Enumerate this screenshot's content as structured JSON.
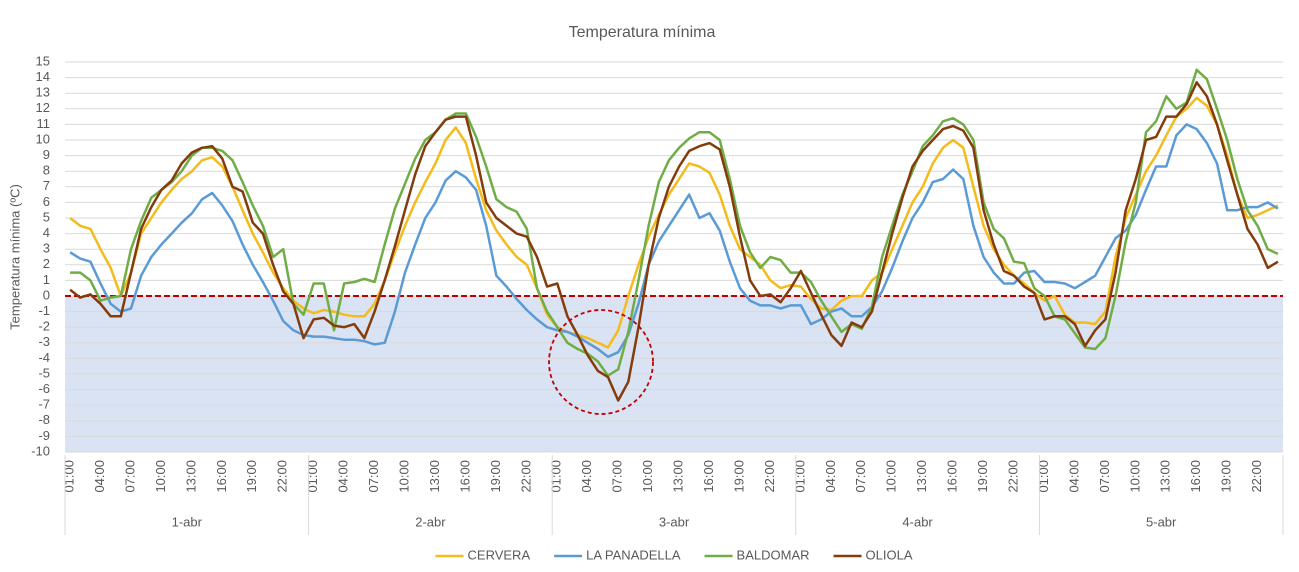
{
  "chart_data": {
    "type": "line",
    "title": "Temperatura mínima",
    "y_label": "Temperatura mínima (ºC)",
    "categories": [
      "01:00",
      null,
      null,
      "04:00",
      null,
      null,
      "07:00",
      null,
      null,
      "10:00",
      null,
      null,
      "13:00",
      null,
      null,
      "16:00",
      null,
      null,
      "19:00",
      null,
      null,
      "22:00",
      null,
      null,
      "01:00",
      null,
      null,
      "04:00",
      null,
      null,
      "07:00",
      null,
      null,
      "10:00",
      null,
      null,
      "13:00",
      null,
      null,
      "16:00",
      null,
      null,
      "19:00",
      null,
      null,
      "22:00",
      null,
      null,
      "01:00",
      null,
      null,
      "04:00",
      null,
      null,
      "07:00",
      null,
      null,
      "10:00",
      null,
      null,
      "13:00",
      null,
      null,
      "16:00",
      null,
      null,
      "19:00",
      null,
      null,
      "22:00",
      null,
      null,
      "01:00",
      null,
      null,
      "04:00",
      null,
      null,
      "07:00",
      null,
      null,
      "10:00",
      null,
      null,
      "13:00",
      null,
      null,
      "16:00",
      null,
      null,
      "19:00",
      null,
      null,
      "22:00",
      null,
      null,
      "01:00",
      null,
      null,
      "04:00",
      null,
      null,
      "07:00",
      null,
      null,
      "10:00",
      null,
      null,
      "13:00",
      null,
      null,
      "16:00",
      null,
      null,
      "19:00",
      null,
      null,
      "22:00",
      null,
      null
    ],
    "x_groups": [
      "1-abr",
      "2-abr",
      "3-abr",
      "4-abr",
      "5-abr"
    ],
    "series": [
      {
        "name": "CERVERA",
        "color": "#f4bb1c",
        "values": [
          5,
          4.5,
          4.3,
          3,
          1.8,
          0,
          1.5,
          4,
          5,
          6,
          6.8,
          7.5,
          8,
          8.7,
          8.9,
          8.3,
          7,
          5.5,
          4,
          2.8,
          1.5,
          0.5,
          -0.3,
          -0.8,
          -1.1,
          -0.9,
          -1,
          -1.2,
          -1.3,
          -1.3,
          -0.5,
          1,
          2.8,
          4.5,
          6,
          7.3,
          8.5,
          10,
          10.8,
          9.8,
          7.5,
          5.5,
          4.2,
          3.3,
          2.5,
          2,
          0.5,
          -1.2,
          -2,
          -2.3,
          -2.5,
          -2.7,
          -3,
          -3.3,
          -2.2,
          0,
          2,
          3.8,
          5.2,
          6.5,
          7.5,
          8.5,
          8.3,
          7.9,
          6.5,
          4.5,
          3,
          2.5,
          2,
          1,
          0.5,
          0.7,
          0.6,
          -0.2,
          -0.8,
          -0.9,
          -0.3,
          0,
          0,
          1,
          1.5,
          3,
          4.5,
          6,
          7,
          8.5,
          9.5,
          10,
          9.5,
          7,
          4.5,
          3,
          2,
          1.3,
          0.8,
          0.2,
          -0.3,
          0,
          -1.2,
          -1.7,
          -1.7,
          -1.8,
          -1,
          2.5,
          5,
          6.5,
          8,
          9,
          10.3,
          11.5,
          12,
          12.7,
          12.2,
          11,
          9,
          6.5,
          5,
          5.2,
          5.5,
          5.8
        ]
      },
      {
        "name": "LA PANADELLA",
        "color": "#5b9bd5",
        "values": [
          2.8,
          2.4,
          2.2,
          0.8,
          -0.5,
          -1,
          -0.8,
          1.3,
          2.5,
          3.3,
          4,
          4.7,
          5.3,
          6.2,
          6.6,
          5.8,
          4.8,
          3.3,
          2,
          0.9,
          -0.3,
          -1.6,
          -2.2,
          -2.5,
          -2.6,
          -2.6,
          -2.7,
          -2.8,
          -2.8,
          -2.9,
          -3.1,
          -3,
          -1,
          1.5,
          3.3,
          5,
          6,
          7.4,
          8,
          7.6,
          6.8,
          4.5,
          1.3,
          0.6,
          -0.2,
          -0.9,
          -1.5,
          -2,
          -2.2,
          -2.3,
          -2.6,
          -3,
          -3.4,
          -3.9,
          -3.6,
          -2.5,
          -0.5,
          2,
          3.5,
          4.5,
          5.5,
          6.5,
          5,
          5.3,
          4.2,
          2.2,
          0.5,
          -0.3,
          -0.6,
          -0.6,
          -0.8,
          -0.6,
          -0.6,
          -1.8,
          -1.5,
          -1,
          -0.8,
          -1.3,
          -1.3,
          -0.7,
          0.3,
          1.8,
          3.5,
          5,
          6,
          7.3,
          7.5,
          8.1,
          7.5,
          4.5,
          2.5,
          1.5,
          0.8,
          0.8,
          1.5,
          1.6,
          0.9,
          0.9,
          0.8,
          0.5,
          0.9,
          1.3,
          2.5,
          3.7,
          4.2,
          5.2,
          6.8,
          8.3,
          8.3,
          10.3,
          11,
          10.7,
          9.8,
          8.5,
          5.5,
          5.5,
          5.7,
          5.7,
          6,
          5.6
        ]
      },
      {
        "name": "BALDOMAR",
        "color": "#70ad47",
        "values": [
          1.5,
          1.5,
          1,
          -0.3,
          -0.1,
          0,
          3,
          4.8,
          6.3,
          6.8,
          7.3,
          8,
          9,
          9.5,
          9.5,
          9.3,
          8.7,
          7.3,
          5.8,
          4.5,
          2.5,
          3,
          -0.5,
          -1.2,
          0.8,
          0.8,
          -2.2,
          0.8,
          0.9,
          1.1,
          0.9,
          3.3,
          5.6,
          7.2,
          8.8,
          10,
          10.5,
          11.3,
          11.7,
          11.7,
          10.2,
          8.3,
          6.2,
          5.7,
          5.4,
          4.3,
          0.5,
          -1,
          -2,
          -3,
          -3.4,
          -3.7,
          -4.2,
          -5.1,
          -4.7,
          -2.3,
          1,
          4.5,
          7.3,
          8.7,
          9.5,
          10.1,
          10.5,
          10.5,
          10,
          7.5,
          4.5,
          2.8,
          1.8,
          2.5,
          2.3,
          1.5,
          1.5,
          0.9,
          -0.3,
          -1.3,
          -2.3,
          -1.8,
          -2.1,
          -0.7,
          2.5,
          4.5,
          6.5,
          8,
          9.6,
          10.3,
          11.2,
          11.4,
          11,
          10,
          6,
          4.3,
          3.7,
          2.2,
          2.1,
          0.5,
          0,
          -1.3,
          -1.5,
          -2.4,
          -3.3,
          -3.4,
          -2.7,
          0,
          3.5,
          6,
          10.5,
          11.2,
          12.8,
          12,
          12.4,
          14.5,
          13.9,
          12,
          10,
          7.5,
          5.5,
          4.5,
          3,
          2.7
        ]
      },
      {
        "name": "OLIOLA",
        "color": "#843c0c",
        "values": [
          0.4,
          -0.1,
          0.1,
          -0.5,
          -1.3,
          -1.3,
          1.5,
          4.3,
          5.7,
          6.8,
          7.4,
          8.5,
          9.2,
          9.5,
          9.6,
          8.8,
          7,
          6.7,
          4.7,
          4,
          2,
          0.3,
          -0.5,
          -2.7,
          -1.5,
          -1.4,
          -1.9,
          -2,
          -1.8,
          -2.7,
          -1,
          1,
          3.2,
          5.5,
          7.8,
          9.6,
          10.5,
          11.3,
          11.5,
          11.5,
          9,
          6,
          5,
          4.5,
          4,
          3.8,
          2.5,
          0.6,
          0.8,
          -1.3,
          -2.5,
          -3.8,
          -4.8,
          -5.2,
          -6.7,
          -5.5,
          -2,
          2,
          5,
          7,
          8.3,
          9.3,
          9.6,
          9.8,
          9.4,
          7,
          3.8,
          1,
          0,
          0.1,
          -0.4,
          0.5,
          1.6,
          0.2,
          -1.2,
          -2.5,
          -3.2,
          -1.7,
          -2,
          -1,
          1.5,
          4,
          6.3,
          8.3,
          9.3,
          10,
          10.7,
          10.9,
          10.6,
          9.5,
          5.5,
          3.3,
          1.6,
          1.3,
          0.6,
          0.2,
          -1.5,
          -1.3,
          -1.3,
          -1.8,
          -3.2,
          -2.2,
          -1.5,
          1.5,
          5.5,
          7.5,
          10,
          10.2,
          11.5,
          11.5,
          12.3,
          13.7,
          12.8,
          11,
          8.7,
          6.5,
          4.3,
          3.3,
          1.8,
          2.2
        ]
      }
    ],
    "ylim": [
      -10,
      15
    ],
    "yticks": [
      -10,
      -9,
      -8,
      -7,
      -6,
      -5,
      -4,
      -3,
      -2,
      -1,
      0,
      1,
      2,
      3,
      4,
      5,
      6,
      7,
      8,
      9,
      10,
      11,
      12,
      13,
      14,
      15
    ],
    "grid": true,
    "legend": "bottom"
  }
}
